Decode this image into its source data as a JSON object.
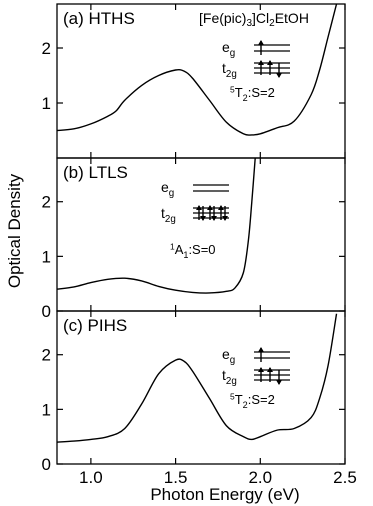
{
  "figure": {
    "xlabel": "Photon Energy (eV)",
    "ylabel": "Optical Density"
  },
  "chart_data": [
    {
      "type": "line",
      "panel_label": "(a) HTHS",
      "compound": "[Fe(pic)3]Cl2EtOH",
      "state_label": "5T2:S=2",
      "levels": {
        "upper": "eg",
        "lower": "t2g",
        "eg_electrons": 2,
        "t2g_electrons": 4
      },
      "xlim": [
        0.8,
        2.5
      ],
      "ylim": [
        0,
        2.8
      ],
      "xticks": [
        1.0,
        1.5,
        2.0,
        2.5
      ],
      "yticks": [
        1,
        2
      ],
      "x": [
        0.8,
        0.9,
        1.0,
        1.1,
        1.15,
        1.2,
        1.3,
        1.4,
        1.5,
        1.55,
        1.6,
        1.7,
        1.8,
        1.9,
        1.95,
        2.0,
        2.1,
        2.2,
        2.3,
        2.35,
        2.4,
        2.45
      ],
      "y": [
        0.5,
        0.53,
        0.62,
        0.76,
        0.86,
        1.05,
        1.32,
        1.5,
        1.6,
        1.58,
        1.45,
        1.05,
        0.65,
        0.44,
        0.42,
        0.44,
        0.55,
        0.67,
        1.15,
        1.6,
        2.2,
        2.8
      ]
    },
    {
      "type": "line",
      "panel_label": "(b) LTLS",
      "state_label": "1A1:S=0",
      "levels": {
        "upper": "eg",
        "lower": "t2g",
        "eg_electrons": 0,
        "t2g_electrons": 6
      },
      "xlim": [
        0.8,
        2.5
      ],
      "ylim": [
        0,
        2.8
      ],
      "xticks": [
        1.0,
        1.5,
        2.0,
        2.5
      ],
      "yticks": [
        0,
        1,
        2
      ],
      "x": [
        0.8,
        0.9,
        1.0,
        1.1,
        1.2,
        1.3,
        1.4,
        1.5,
        1.6,
        1.7,
        1.8,
        1.85,
        1.9,
        1.93,
        1.95,
        1.97
      ],
      "y": [
        0.4,
        0.44,
        0.52,
        0.58,
        0.6,
        0.55,
        0.45,
        0.38,
        0.34,
        0.33,
        0.36,
        0.42,
        0.7,
        1.3,
        2.0,
        2.8
      ]
    },
    {
      "type": "line",
      "panel_label": "(c) PIHS",
      "state_label": "5T2:S=2",
      "levels": {
        "upper": "eg",
        "lower": "t2g",
        "eg_electrons": 2,
        "t2g_electrons": 4
      },
      "xlim": [
        0.8,
        2.5
      ],
      "ylim": [
        0,
        2.8
      ],
      "xticks": [
        1.0,
        1.5,
        2.0,
        2.5
      ],
      "xticklabels": [
        "1.0",
        "1.5",
        "2.0",
        "2.5"
      ],
      "yticks": [
        0,
        1,
        2
      ],
      "x": [
        0.8,
        0.9,
        1.0,
        1.1,
        1.2,
        1.3,
        1.4,
        1.5,
        1.55,
        1.6,
        1.7,
        1.8,
        1.9,
        1.95,
        2.0,
        2.1,
        2.2,
        2.3,
        2.35,
        2.4,
        2.45
      ],
      "y": [
        0.4,
        0.42,
        0.45,
        0.5,
        0.65,
        1.1,
        1.65,
        1.9,
        1.88,
        1.7,
        1.2,
        0.7,
        0.5,
        0.45,
        0.5,
        0.62,
        0.65,
        0.85,
        1.2,
        1.8,
        2.75
      ]
    }
  ]
}
